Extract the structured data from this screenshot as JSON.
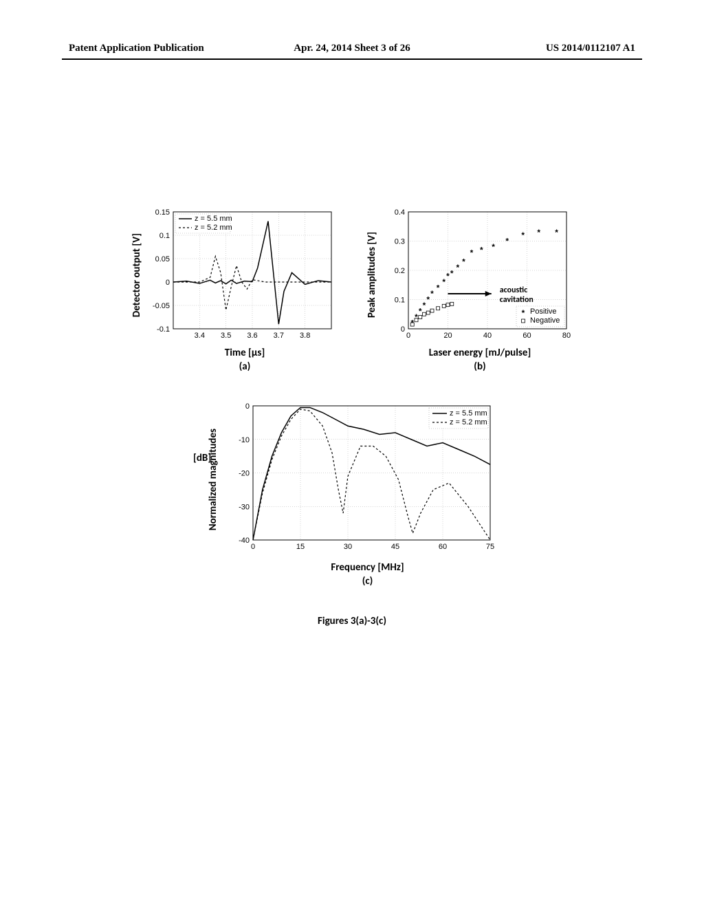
{
  "header": {
    "left": "Patent Application Publication",
    "center": "Apr. 24, 2014  Sheet 3 of 26",
    "right": "US 2014/0112107 A1"
  },
  "caption": "Figures 3(a)-3(c)",
  "panel_a": {
    "type": "line",
    "ylabel": "Detector output [V]",
    "xlabel": "Time [μs]",
    "sublabel": "(a)",
    "xlim": [
      3.3,
      3.9
    ],
    "ylim": [
      -0.1,
      0.15
    ],
    "xticks": [
      3.4,
      3.5,
      3.6,
      3.7,
      3.8
    ],
    "yticks": [
      -0.1,
      -0.05,
      0,
      0.05,
      0.1,
      0.15
    ],
    "grid_color": "#aaaaaa",
    "background_color": "#ffffff",
    "legend": {
      "position": "top-left",
      "items": [
        {
          "label": "z = 5.5 mm",
          "style": "solid"
        },
        {
          "label": "z = 5.2 mm",
          "style": "dashed"
        }
      ]
    },
    "series": [
      {
        "name": "z55",
        "style": "solid",
        "color": "#000000",
        "x": [
          3.3,
          3.35,
          3.4,
          3.44,
          3.46,
          3.48,
          3.5,
          3.52,
          3.54,
          3.57,
          3.6,
          3.62,
          3.64,
          3.66,
          3.68,
          3.7,
          3.72,
          3.75,
          3.8,
          3.85,
          3.9
        ],
        "y": [
          0.0,
          0.002,
          -0.003,
          0.004,
          -0.002,
          0.003,
          -0.004,
          0.004,
          -0.003,
          0.002,
          0.001,
          0.03,
          0.08,
          0.13,
          0.02,
          -0.09,
          -0.02,
          0.02,
          -0.005,
          0.003,
          0.0
        ]
      },
      {
        "name": "z52",
        "style": "dashed",
        "color": "#000000",
        "x": [
          3.3,
          3.4,
          3.44,
          3.46,
          3.48,
          3.5,
          3.52,
          3.54,
          3.56,
          3.58,
          3.6,
          3.65,
          3.7,
          3.75,
          3.8,
          3.85,
          3.9
        ],
        "y": [
          0.0,
          0.0,
          0.01,
          0.055,
          0.02,
          -0.06,
          -0.01,
          0.035,
          0.0,
          -0.015,
          0.005,
          0.0,
          0.0,
          0.0,
          0.0,
          0.0,
          0.0
        ]
      }
    ]
  },
  "panel_b": {
    "type": "scatter",
    "ylabel": "Peak amplitudes [V]",
    "xlabel": "Laser energy [mJ/pulse]",
    "sublabel": "(b)",
    "xlim": [
      0,
      80
    ],
    "ylim": [
      0,
      0.4
    ],
    "xticks": [
      0,
      20,
      40,
      60,
      80
    ],
    "yticks": [
      0,
      0.1,
      0.2,
      0.3,
      0.4
    ],
    "grid_color": "#aaaaaa",
    "background_color": "#ffffff",
    "legend": {
      "position": "bottom-right",
      "items": [
        {
          "label": "Positive",
          "marker": "filled"
        },
        {
          "label": "Negative",
          "marker": "open"
        }
      ]
    },
    "annotation": {
      "text1": "acoustic",
      "text2": "cavitation",
      "arrow_from": [
        20,
        0.12
      ],
      "arrow_to": [
        42,
        0.12
      ]
    },
    "positive": {
      "x": [
        2,
        4,
        6,
        8,
        10,
        12,
        15,
        18,
        20,
        22,
        25,
        28,
        32,
        37,
        43,
        50,
        58,
        66,
        75
      ],
      "y": [
        0.02,
        0.04,
        0.06,
        0.08,
        0.1,
        0.12,
        0.14,
        0.16,
        0.18,
        0.19,
        0.21,
        0.23,
        0.26,
        0.27,
        0.28,
        0.3,
        0.32,
        0.33,
        0.33
      ]
    },
    "negative": {
      "x": [
        2,
        4,
        6,
        8,
        10,
        12,
        15,
        18,
        20,
        22
      ],
      "y": [
        0.015,
        0.03,
        0.04,
        0.05,
        0.055,
        0.062,
        0.07,
        0.078,
        0.082,
        0.085
      ]
    }
  },
  "panel_c": {
    "type": "line",
    "ylabel_line1": "Normalized magnitudes",
    "ylabel_line2": "[dB]",
    "xlabel": "Frequency [MHz]",
    "sublabel": "(c)",
    "xlim": [
      0,
      75
    ],
    "ylim": [
      -40,
      0
    ],
    "xticks": [
      0,
      15,
      30,
      45,
      60,
      75
    ],
    "yticks": [
      -40,
      -30,
      -20,
      -10,
      0
    ],
    "grid_color": "#aaaaaa",
    "background_color": "#ffffff",
    "legend": {
      "position": "top-right",
      "items": [
        {
          "label": "z = 5.5 mm",
          "style": "solid"
        },
        {
          "label": "z = 5.2 mm",
          "style": "dashed"
        }
      ]
    },
    "series": [
      {
        "name": "z55",
        "style": "solid",
        "color": "#000000",
        "x": [
          0,
          3,
          6,
          9,
          12,
          15,
          18,
          22,
          26,
          30,
          35,
          40,
          45,
          50,
          55,
          60,
          65,
          70,
          75
        ],
        "y": [
          -40,
          -25,
          -15,
          -8,
          -3,
          -0.5,
          -0.5,
          -2,
          -4,
          -6,
          -7,
          -8.5,
          -8,
          -10,
          -12,
          -11,
          -13,
          -15,
          -17.5
        ]
      },
      {
        "name": "z52",
        "style": "dashed",
        "color": "#000000",
        "x": [
          0,
          3,
          6,
          9,
          12,
          15,
          18,
          22,
          25,
          27,
          28.5,
          30,
          34,
          38,
          42,
          46,
          49,
          50.5,
          53,
          57,
          62,
          68,
          75
        ],
        "y": [
          -40,
          -26,
          -16,
          -9,
          -4,
          -1,
          -1.5,
          -6,
          -14,
          -25,
          -32,
          -21,
          -12,
          -12,
          -15,
          -22,
          -33,
          -38,
          -32,
          -25,
          -23,
          -30,
          -40
        ]
      }
    ]
  }
}
